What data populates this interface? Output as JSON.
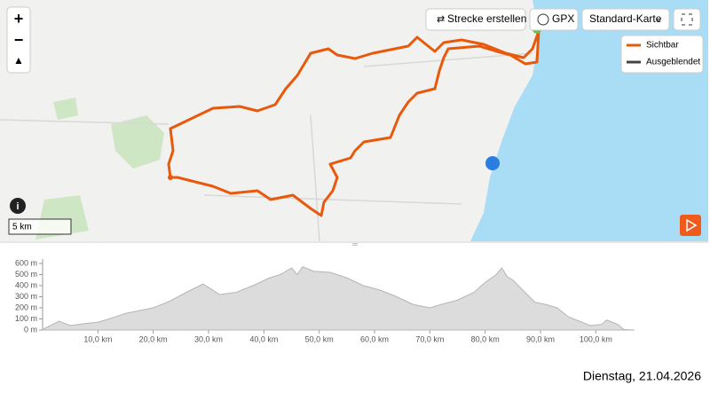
{
  "map": {
    "buttons": [
      "Strecke erstellen",
      "GPX",
      "Standard-Karte"
    ],
    "legend": [
      "Sichtbar",
      "Ausgeblendet"
    ],
    "scale": "5 km"
  },
  "chart_data": {
    "type": "area",
    "color": "#dcdcdc",
    "x": [
      0,
      3,
      5,
      8,
      10,
      12,
      15,
      18,
      20,
      23,
      26,
      29,
      32,
      35,
      38,
      41,
      43,
      45,
      46,
      47,
      49,
      52,
      55,
      58,
      61,
      64,
      67,
      70,
      72,
      75,
      78,
      80,
      82,
      83,
      84,
      85,
      87,
      89,
      91,
      93,
      95,
      97,
      99,
      101,
      102,
      104,
      105,
      107
    ],
    "values": [
      5,
      80,
      40,
      60,
      70,
      100,
      150,
      180,
      200,
      260,
      340,
      415,
      320,
      340,
      400,
      470,
      500,
      560,
      500,
      570,
      530,
      520,
      470,
      400,
      360,
      300,
      230,
      200,
      230,
      270,
      340,
      430,
      500,
      560,
      480,
      450,
      350,
      250,
      230,
      200,
      120,
      80,
      40,
      50,
      90,
      50,
      5,
      0
    ],
    "xlim": [
      0,
      107
    ],
    "ylim": [
      0,
      600
    ],
    "xticks": [
      {
        "value": 10,
        "label": "10,0 km"
      },
      {
        "value": 20,
        "label": "20,0 km"
      },
      {
        "value": 30,
        "label": "30,0 km"
      },
      {
        "value": 40,
        "label": "40,0 km"
      },
      {
        "value": 50,
        "label": "50,0 km"
      },
      {
        "value": 60,
        "label": "60,0 km"
      },
      {
        "value": 70,
        "label": "70,0 km"
      },
      {
        "value": 80,
        "label": "80,0 km"
      },
      {
        "value": 90,
        "label": "90,0 km"
      },
      {
        "value": 100,
        "label": "100,0 km"
      }
    ],
    "yticks": [
      {
        "value": 0,
        "label": "0 m"
      },
      {
        "value": 100,
        "label": "100 m"
      },
      {
        "value": 200,
        "label": "200 m"
      },
      {
        "value": 300,
        "label": "300 m"
      },
      {
        "value": 400,
        "label": "400 m"
      },
      {
        "value": 500,
        "label": "500 m"
      },
      {
        "value": 600,
        "label": "600 m"
      }
    ]
  },
  "footer": {
    "date": "Dienstag, 21.04.2026"
  }
}
